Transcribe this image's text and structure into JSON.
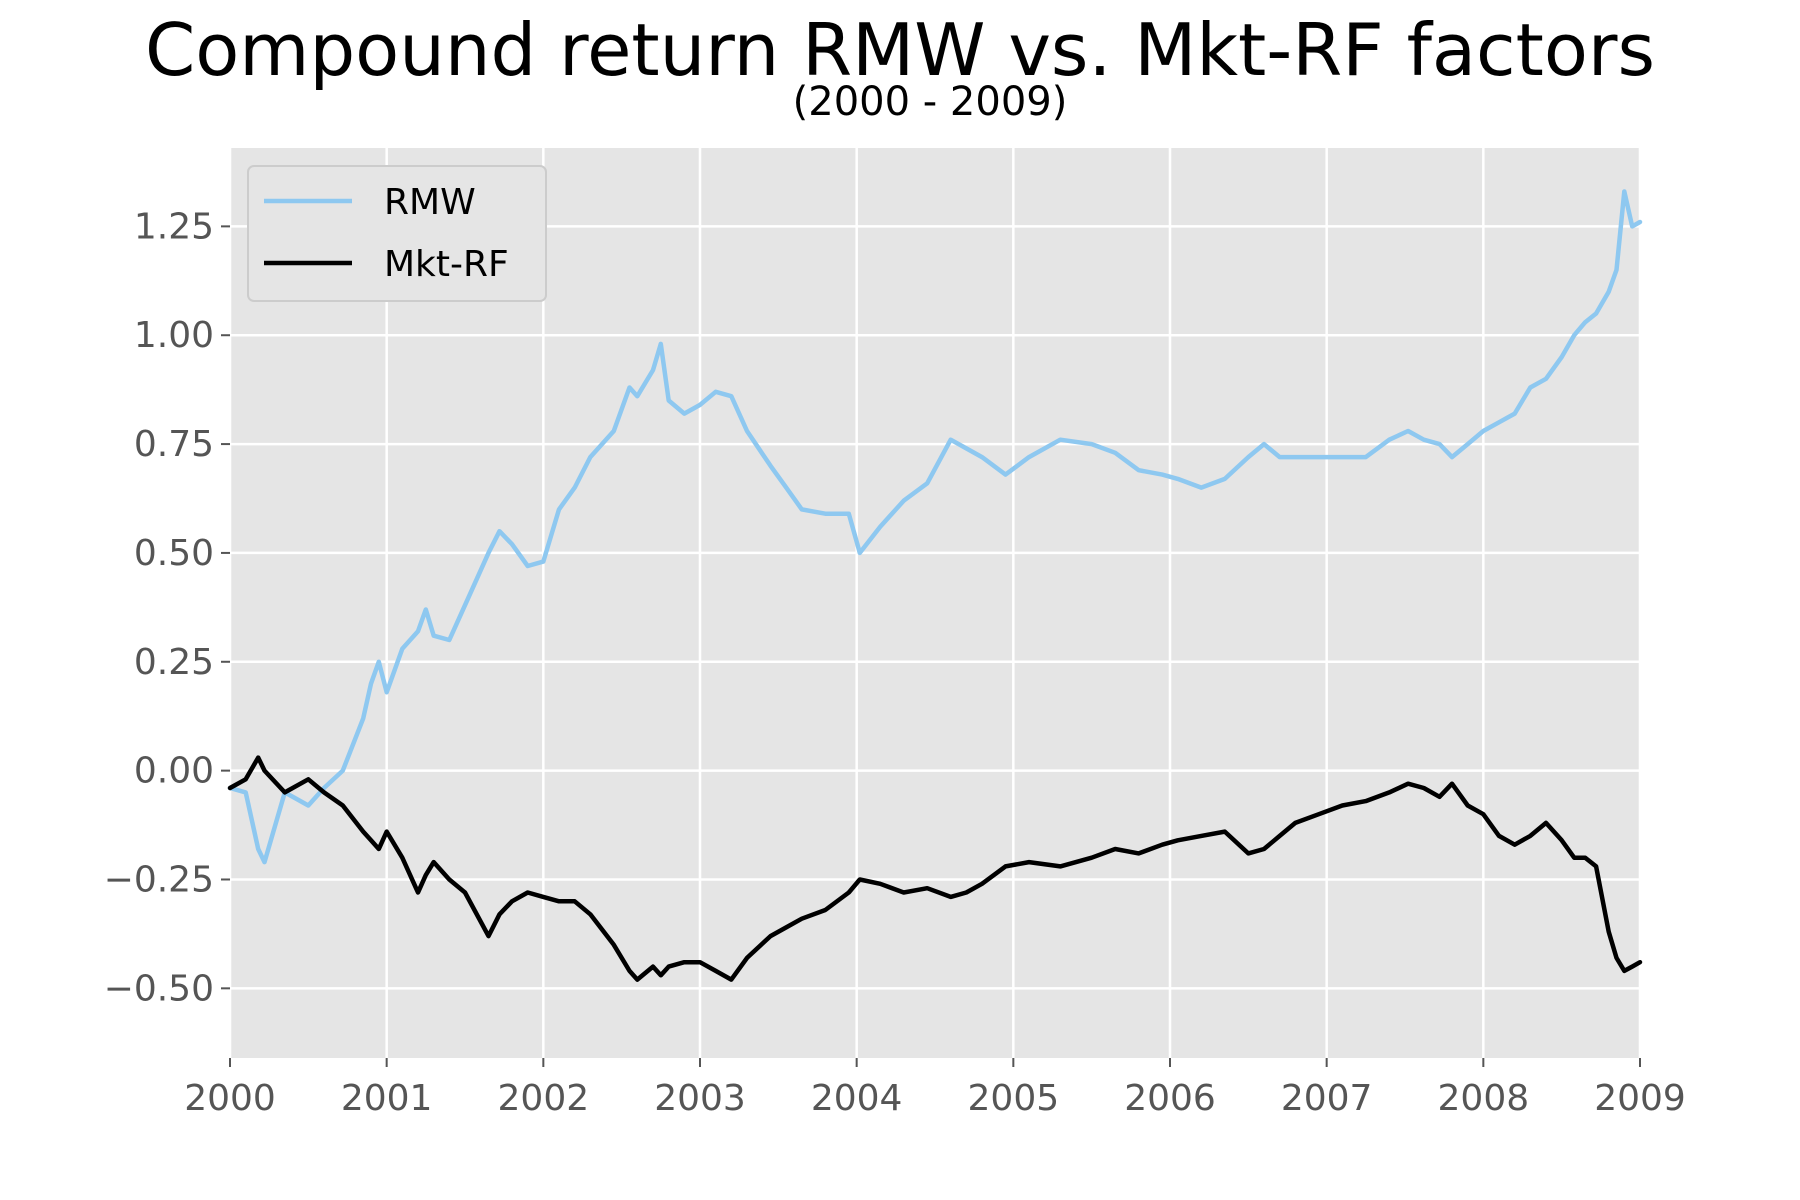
{
  "chart_data": {
    "type": "line",
    "title": "Compound return RMW vs. Mkt-RF factors",
    "subtitle": "(2000 - 2009)",
    "xlabel": "",
    "ylabel": "",
    "x_ticks": [
      "2000",
      "2001",
      "2002",
      "2003",
      "2004",
      "2005",
      "2006",
      "2007",
      "2008",
      "2009"
    ],
    "y_ticks": [
      "1.25",
      "1.00",
      "0.75",
      "0.50",
      "0.25",
      "0.00",
      "−0.25",
      "−0.50"
    ],
    "y_tick_values": [
      1.25,
      1.0,
      0.75,
      0.5,
      0.25,
      0.0,
      -0.25,
      -0.5
    ],
    "xlim": [
      2000,
      2009
    ],
    "ylim": [
      -0.66,
      1.43
    ],
    "grid": true,
    "legend_placement": "top-left",
    "x": [
      2000.0,
      2000.1,
      2000.18,
      2000.22,
      2000.35,
      2000.5,
      2000.6,
      2000.72,
      2000.85,
      2000.9,
      2000.95,
      2001.0,
      2001.1,
      2001.2,
      2001.25,
      2001.3,
      2001.4,
      2001.5,
      2001.65,
      2001.72,
      2001.8,
      2001.9,
      2002.0,
      2002.1,
      2002.2,
      2002.3,
      2002.45,
      2002.55,
      2002.6,
      2002.7,
      2002.75,
      2002.8,
      2002.9,
      2003.0,
      2003.1,
      2003.2,
      2003.3,
      2003.45,
      2003.55,
      2003.65,
      2003.8,
      2003.95,
      2004.02,
      2004.15,
      2004.3,
      2004.45,
      2004.6,
      2004.7,
      2004.8,
      2004.95,
      2005.1,
      2005.3,
      2005.5,
      2005.65,
      2005.8,
      2005.95,
      2006.05,
      2006.2,
      2006.35,
      2006.5,
      2006.6,
      2006.7,
      2006.8,
      2006.95,
      2007.1,
      2007.25,
      2007.4,
      2007.52,
      2007.62,
      2007.72,
      2007.8,
      2007.9,
      2008.0,
      2008.1,
      2008.2,
      2008.3,
      2008.4,
      2008.5,
      2008.58,
      2008.65,
      2008.72,
      2008.8,
      2008.85,
      2008.9,
      2008.95,
      2009.0
    ],
    "series": [
      {
        "name": "RMW",
        "color": "#8ec8f0",
        "values": [
          -0.04,
          -0.05,
          -0.18,
          -0.21,
          -0.05,
          -0.08,
          -0.04,
          0.0,
          0.12,
          0.2,
          0.25,
          0.18,
          0.28,
          0.32,
          0.37,
          0.31,
          0.3,
          0.38,
          0.5,
          0.55,
          0.52,
          0.47,
          0.48,
          0.6,
          0.65,
          0.72,
          0.78,
          0.88,
          0.86,
          0.92,
          0.98,
          0.85,
          0.82,
          0.84,
          0.87,
          0.86,
          0.78,
          0.7,
          0.65,
          0.6,
          0.59,
          0.59,
          0.5,
          0.56,
          0.62,
          0.66,
          0.76,
          0.74,
          0.72,
          0.68,
          0.72,
          0.76,
          0.75,
          0.73,
          0.69,
          0.68,
          0.67,
          0.65,
          0.67,
          0.72,
          0.75,
          0.72,
          0.72,
          0.72,
          0.72,
          0.72,
          0.76,
          0.78,
          0.76,
          0.75,
          0.72,
          0.75,
          0.78,
          0.8,
          0.82,
          0.88,
          0.9,
          0.95,
          1.0,
          1.03,
          1.05,
          1.1,
          1.15,
          1.33,
          1.25,
          1.26
        ]
      },
      {
        "name": "Mkt-RF",
        "color": "#000000",
        "values": [
          -0.04,
          -0.02,
          0.03,
          0.0,
          -0.05,
          -0.02,
          -0.05,
          -0.08,
          -0.14,
          -0.16,
          -0.18,
          -0.14,
          -0.2,
          -0.28,
          -0.24,
          -0.21,
          -0.25,
          -0.28,
          -0.38,
          -0.33,
          -0.3,
          -0.28,
          -0.29,
          -0.3,
          -0.3,
          -0.33,
          -0.4,
          -0.46,
          -0.48,
          -0.45,
          -0.47,
          -0.45,
          -0.44,
          -0.44,
          -0.46,
          -0.48,
          -0.43,
          -0.38,
          -0.36,
          -0.34,
          -0.32,
          -0.28,
          -0.25,
          -0.26,
          -0.28,
          -0.27,
          -0.29,
          -0.28,
          -0.26,
          -0.22,
          -0.21,
          -0.22,
          -0.2,
          -0.18,
          -0.19,
          -0.17,
          -0.16,
          -0.15,
          -0.14,
          -0.19,
          -0.18,
          -0.15,
          -0.12,
          -0.1,
          -0.08,
          -0.07,
          -0.05,
          -0.03,
          -0.04,
          -0.06,
          -0.03,
          -0.08,
          -0.1,
          -0.15,
          -0.17,
          -0.15,
          -0.12,
          -0.16,
          -0.2,
          -0.2,
          -0.22,
          -0.37,
          -0.43,
          -0.46,
          -0.45,
          -0.44
        ]
      }
    ]
  }
}
